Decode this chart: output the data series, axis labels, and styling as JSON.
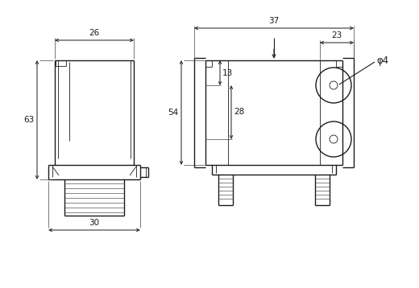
{
  "bg_color": "#ffffff",
  "line_color": "#1a1a1a",
  "lw": 1.0,
  "tlw": 0.6,
  "fs": 7.5,
  "dims": {
    "d26": "26",
    "d30": "30",
    "d63": "63",
    "d37": "37",
    "d23": "23",
    "d13": "13",
    "d28": "28",
    "d54": "54",
    "d4": "φ4"
  }
}
